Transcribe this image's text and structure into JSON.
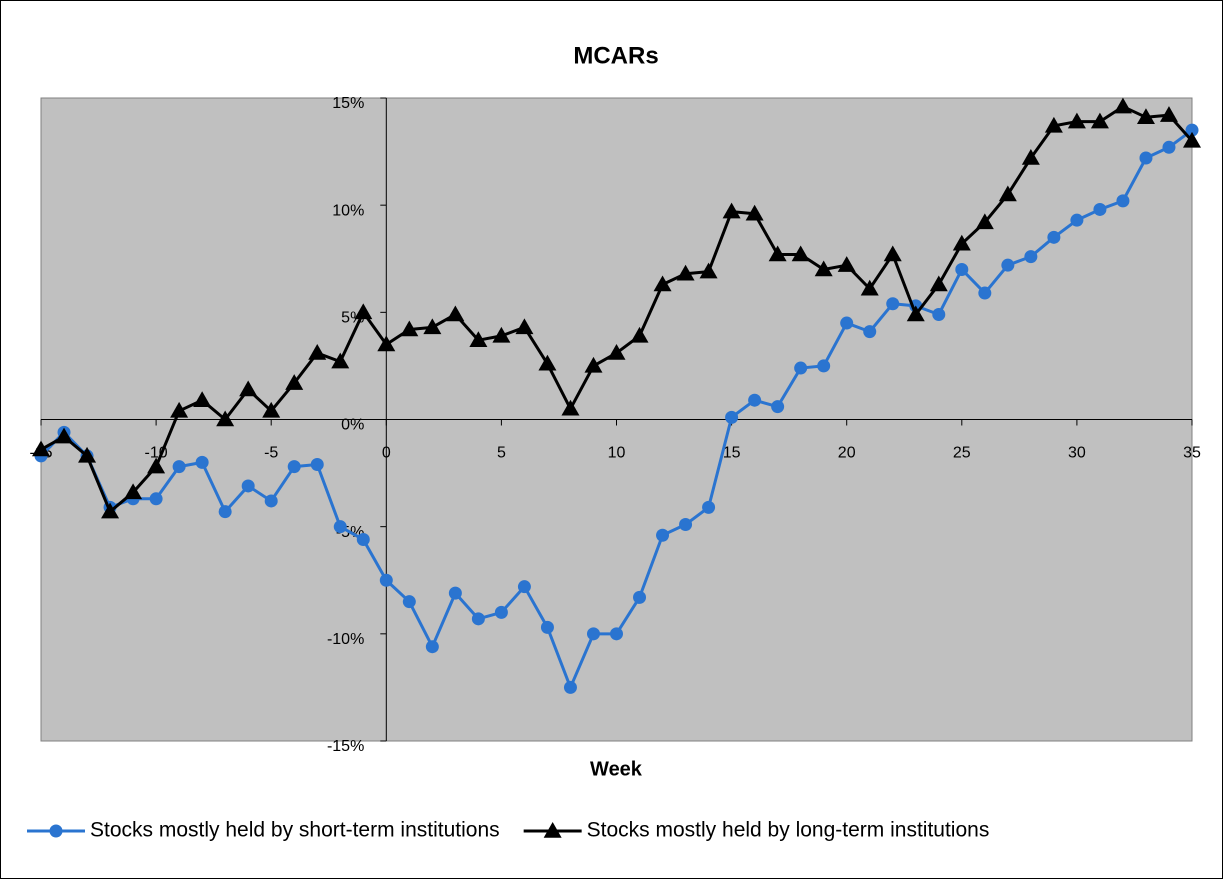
{
  "chart_data": {
    "type": "line",
    "title": "MCARs",
    "x_label": "Week",
    "x": [
      -15,
      -14,
      -13,
      -12,
      -11,
      -10,
      -9,
      -8,
      -7,
      -6,
      -5,
      -4,
      -3,
      -2,
      -1,
      0,
      1,
      2,
      3,
      4,
      5,
      6,
      7,
      8,
      9,
      10,
      11,
      12,
      13,
      14,
      15,
      16,
      17,
      18,
      19,
      20,
      21,
      22,
      23,
      24,
      25,
      26,
      27,
      28,
      29,
      30,
      31,
      32,
      33,
      34,
      35
    ],
    "xlim": [
      -15,
      35
    ],
    "xticks": [
      -15,
      -10,
      -5,
      0,
      5,
      10,
      15,
      20,
      25,
      30,
      35
    ],
    "ylim": [
      -15,
      15
    ],
    "yticks": [
      {
        "value": -15,
        "label": "-15%"
      },
      {
        "value": -10,
        "label": "-10%"
      },
      {
        "value": -5,
        "label": "-5%"
      },
      {
        "value": 0,
        "label": "0%"
      },
      {
        "value": 5,
        "label": "5%"
      },
      {
        "value": 10,
        "label": "10%"
      },
      {
        "value": 15,
        "label": "15%"
      }
    ],
    "grid": false,
    "legend": "bottom",
    "series": [
      {
        "name": "Stocks mostly held by short-term institutions",
        "color": "#2a74d0",
        "marker": "circle",
        "values": [
          -1.7,
          -0.6,
          -1.7,
          -4.1,
          -3.7,
          -3.7,
          -2.2,
          -2.0,
          -4.3,
          -3.1,
          -3.8,
          -2.2,
          -2.1,
          -5.0,
          -5.6,
          -7.5,
          -8.5,
          -10.6,
          -8.1,
          -9.3,
          -9.0,
          -7.8,
          -9.7,
          -12.5,
          -10.0,
          -10.0,
          -8.3,
          -5.4,
          -4.9,
          -4.1,
          0.1,
          0.9,
          0.6,
          2.4,
          2.5,
          4.5,
          4.1,
          5.4,
          5.3,
          4.9,
          7.0,
          5.9,
          7.2,
          7.6,
          8.5,
          9.3,
          9.8,
          10.2,
          12.2,
          12.7,
          13.5
        ]
      },
      {
        "name": "Stocks mostly held by long-term institutions",
        "color": "#000000",
        "marker": "triangle",
        "values": [
          -1.4,
          -0.8,
          -1.7,
          -4.3,
          -3.4,
          -2.2,
          0.4,
          0.9,
          0.0,
          1.4,
          0.4,
          1.7,
          3.1,
          2.7,
          5.0,
          3.5,
          4.2,
          4.3,
          4.9,
          3.7,
          3.9,
          4.3,
          2.6,
          0.5,
          2.5,
          3.1,
          3.9,
          6.3,
          6.8,
          6.9,
          9.7,
          9.6,
          7.7,
          7.7,
          7.0,
          7.2,
          6.1,
          7.7,
          4.9,
          6.3,
          8.2,
          9.2,
          10.5,
          12.2,
          13.7,
          13.9,
          13.9,
          14.6,
          14.1,
          14.2,
          13.0
        ]
      }
    ]
  }
}
